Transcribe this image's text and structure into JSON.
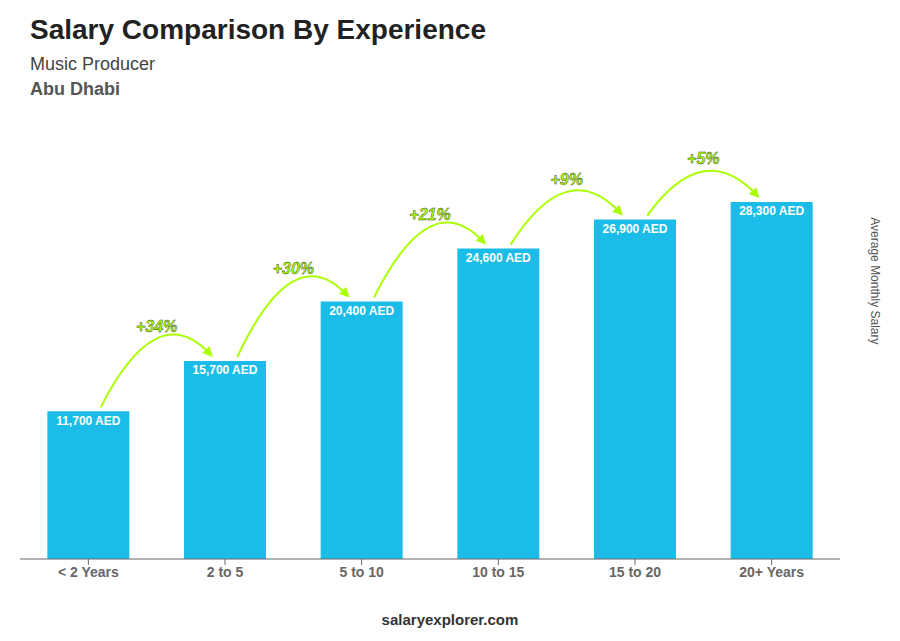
{
  "chart_data": {
    "type": "bar",
    "title": "Salary Comparison By Experience",
    "subtitle": "Music Producer",
    "annotations": [
      "Abu Dhabi",
      "salaryexplorer.com"
    ],
    "ylabel": "Average Monthly Salary",
    "categories": [
      "< 2 Years",
      "2 to 5",
      "5 to 10",
      "10 to 15",
      "15 to 20",
      "20+ Years"
    ],
    "values": [
      11700,
      15700,
      20400,
      24600,
      26900,
      28300
    ],
    "value_labels": [
      "11,700 AED",
      "15,700 AED",
      "20,400 AED",
      "24,600 AED",
      "26,900 AED",
      "28,300 AED"
    ],
    "data_labels": true,
    "color": "#1bbde8",
    "ylim": [
      0,
      34000
    ],
    "grid": false,
    "tick_labels": "x",
    "changes": [
      {
        "from": "< 2 Years",
        "to": "2 to 5",
        "label": "+34%",
        "color": "#aaff00"
      },
      {
        "from": "2 to 5",
        "to": "5 to 10",
        "label": "+30%",
        "color": "#aaff00"
      },
      {
        "from": "5 to 10",
        "to": "10 to 15",
        "label": "+21%",
        "color": "#aaff00"
      },
      {
        "from": "10 to 15",
        "to": "15 to 20",
        "label": "+9%",
        "color": "#aaff00"
      },
      {
        "from": "15 to 20",
        "to": "20+ Years",
        "label": "+5%",
        "color": "#aaff00"
      }
    ]
  }
}
